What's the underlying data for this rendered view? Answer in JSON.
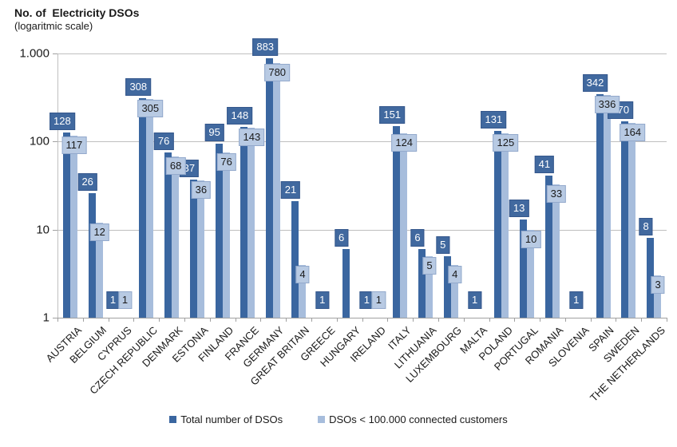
{
  "chart_data": {
    "type": "bar",
    "scale": "logarithmic",
    "title": "No. of  Electricity DSOs",
    "subtitle": "(logaritmic scale)",
    "ylim": [
      1,
      1000
    ],
    "grid": true,
    "legend_position": "bottom",
    "y_ticks": [
      {
        "label": "1.000",
        "value": 1000
      },
      {
        "label": "100",
        "value": 100
      },
      {
        "label": "10",
        "value": 10
      },
      {
        "label": "1",
        "value": 1
      }
    ],
    "categories": [
      "AUSTRIA",
      "BELGIUM",
      "CYPRUS",
      "CZECH REPUBLIC",
      "DENMARK",
      "ESTONIA",
      "FINLAND",
      "FRANCE",
      "GERMANY",
      "GREAT BRITAIN",
      "GREECE",
      "HUNGARY",
      "IRELAND",
      "ITALY",
      "LITHUANIA",
      "LUXEMBOURG",
      "MALTA",
      "POLAND",
      "PORTUGAL",
      "ROMANIA",
      "SLOVENIA",
      "SPAIN",
      "SWEDEN",
      "THE NETHERLANDS"
    ],
    "series": [
      {
        "key": "total",
        "name": "Total number of DSOs",
        "color": "#3A66A0",
        "label_bg": "#41699F",
        "label_border": "#35578C",
        "label_text": "#FFFFFF",
        "values": [
          128,
          26,
          1,
          308,
          76,
          37,
          95,
          148,
          883,
          21,
          1,
          6,
          1,
          151,
          6,
          5,
          1,
          131,
          13,
          41,
          1,
          342,
          170,
          8
        ]
      },
      {
        "key": "under-100k",
        "name": "DSOs < 100.000 connected customers",
        "color": "#A7BDDC",
        "label_bg": "#B8CAE3",
        "label_border": "#93A9CC",
        "label_text": "#1A1A1A",
        "values": [
          117,
          12,
          1,
          305,
          68,
          36,
          76,
          143,
          780,
          4,
          null,
          null,
          1,
          124,
          5,
          4,
          null,
          125,
          10,
          33,
          null,
          336,
          164,
          3
        ]
      }
    ],
    "colors": {
      "gridline": "#BFBFBF",
      "axis": "#A0A0A0",
      "text": "#1A1A1A"
    }
  }
}
